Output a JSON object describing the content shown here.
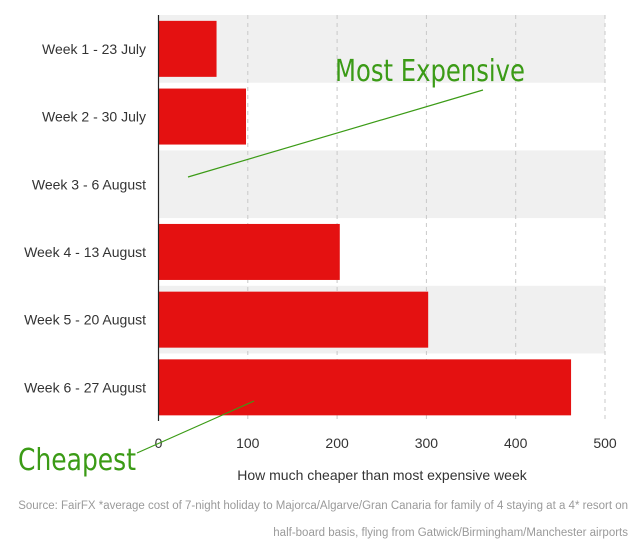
{
  "colors": {
    "bar": "#e41111",
    "band": "#f0f0f0",
    "annotation": "#3b9b16",
    "text": "#333333",
    "grid": "#c8c8c8",
    "source": "#9a9a9a"
  },
  "annotations": {
    "most_expensive": "Most Expensive",
    "cheapest": "Cheapest"
  },
  "source": {
    "line1": "Source: FairFX *average cost of 7-night holiday to Majorca/Algarve/Gran Canaria for family of 4 staying at a 4* resort on",
    "line2": "half-board basis, flying from Gatwick/Birmingham/Manchester airports"
  },
  "chart_data": {
    "type": "bar",
    "orientation": "horizontal",
    "categories": [
      "Week 1 - 23 July",
      "Week 2 - 30 July",
      "Week 3 - 6 August",
      "Week 4 - 13 August",
      "Week 5 - 20 August",
      "Week 6 - 27 August"
    ],
    "values": [
      65,
      98,
      0,
      203,
      302,
      462
    ],
    "xlabel": "How much cheaper than most expensive week",
    "ylabel": "",
    "xlim": [
      0,
      500
    ],
    "xticks": [
      0,
      100,
      200,
      300,
      400,
      500
    ],
    "grid": true
  }
}
